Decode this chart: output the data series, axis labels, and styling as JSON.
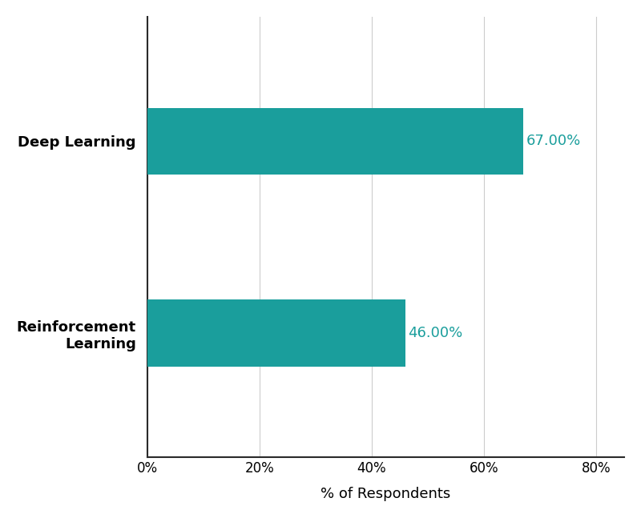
{
  "categories": [
    "Reinforcement\nLearning",
    "Deep Learning"
  ],
  "values": [
    46.0,
    67.0
  ],
  "bar_color": "#1a9e9c",
  "label_color": "#1a9e9c",
  "xlabel": "% of Respondents",
  "xlabel_fontsize": 13,
  "tick_label_fontsize": 12,
  "bar_label_fontsize": 13,
  "ytick_fontsize": 13,
  "xlim": [
    0,
    85
  ],
  "xticks": [
    0,
    20,
    40,
    60,
    80
  ],
  "background_color": "#ffffff",
  "grid_color": "#cccccc",
  "spine_color": "#2a2a2a",
  "bar_height": 0.35
}
